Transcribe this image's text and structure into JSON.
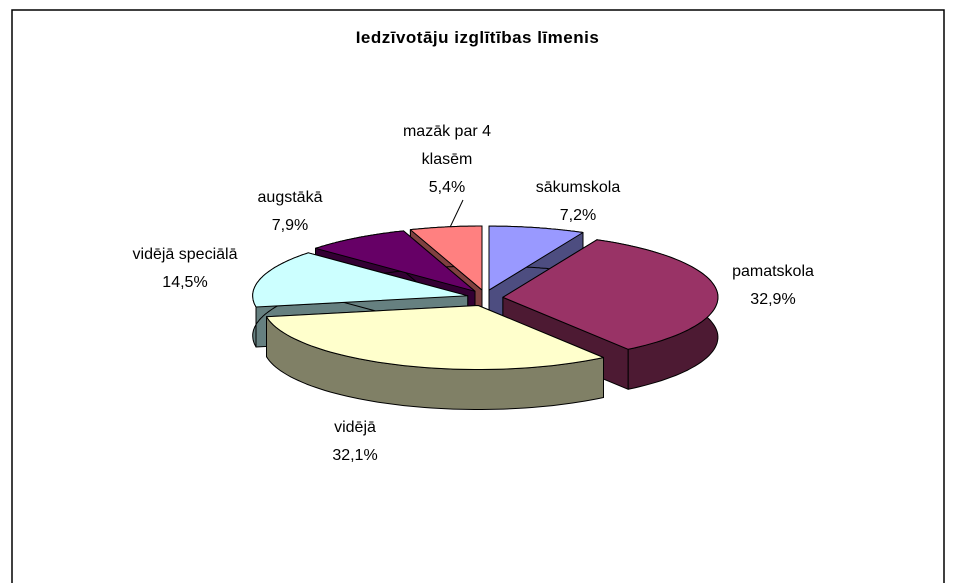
{
  "chart_data": {
    "type": "pie3d",
    "title": "Iedzīvotāju izglītības līmenis",
    "categories": [
      "sākumskola",
      "pamatskola",
      "vidējā",
      "vidējā speciālā",
      "augstākā",
      "mazāk par 4 klasēm"
    ],
    "values": [
      7.2,
      32.9,
      32.1,
      14.5,
      7.9,
      5.4
    ],
    "value_labels": [
      "7,2%",
      "32,9%",
      "32,1%",
      "14,5%",
      "7,9%",
      "5,4%"
    ],
    "colors": [
      "#9999ff",
      "#993366",
      "#ffffcc",
      "#ccffff",
      "#660066",
      "#ff8080"
    ]
  }
}
